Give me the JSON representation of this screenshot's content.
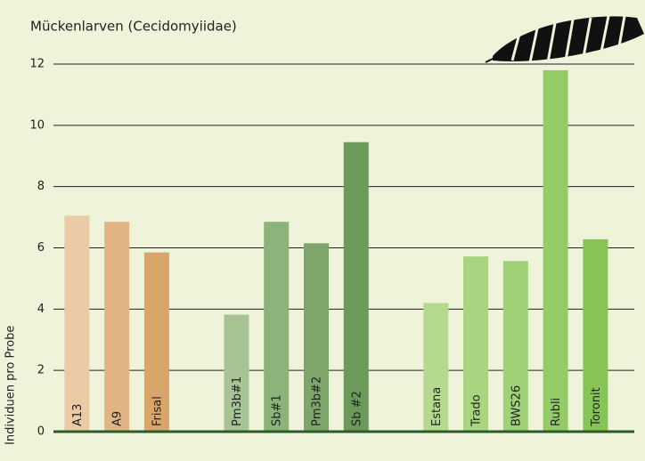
{
  "chart_data": {
    "type": "bar",
    "title": "Mückenlarven (Cecidomyiidae)",
    "y_label": "Individuen pro Probe",
    "categories": [
      "A13",
      "A9",
      "Frisal",
      null,
      "Pm3b#1",
      "Sb#1",
      "Pm3b#2",
      "Sb #2",
      null,
      "Estana",
      "Trado",
      "BWS26",
      "Rubli",
      "Toronit"
    ],
    "values": [
      7.05,
      6.85,
      5.85,
      null,
      3.82,
      6.85,
      6.15,
      9.45,
      null,
      4.2,
      5.72,
      5.57,
      11.8,
      6.28
    ],
    "colors": [
      "#eacba6",
      "#e0b483",
      "#d8a56a",
      null,
      "#a8c494",
      "#8cb37a",
      "#7ea66a",
      "#6b9a5a",
      null,
      "#b5da8e",
      "#a9d580",
      "#9fd177",
      "#93cb66",
      "#86c456"
    ],
    "ylim": [
      0,
      12
    ],
    "yticks": [
      0,
      2,
      4,
      6,
      8,
      10,
      12
    ],
    "grid": true
  }
}
